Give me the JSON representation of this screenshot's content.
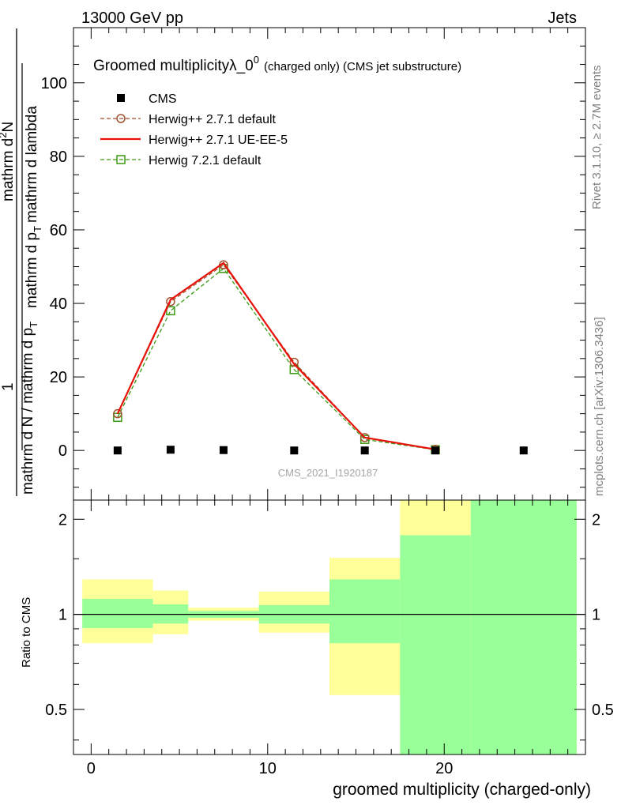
{
  "header": {
    "energy": "13000 GeV pp",
    "process": "Jets"
  },
  "side_labels": {
    "rivet": "Rivet 3.1.10, ≥ 2.7M events",
    "mcplots": "mcplots.cern.ch [arXiv:1306.3436]"
  },
  "chart_data": [
    {
      "type": "scatter",
      "title_main": "Groomed multiplicityλ_0",
      "title_sup": "0",
      "title_small": "(charged only) (CMS jet substructure)",
      "analysis_label": "CMS_2021_I1920187",
      "ylabel": {
        "numerator": "1",
        "denominator": "mathrm d N / mathrm d p",
        "frac_num": "mathrm d",
        "frac_num_sup": "2",
        "frac_num_tail": "N",
        "frac_den_a": "mathrm d p",
        "frac_den_b": "mathrm d lambda",
        "sub": "T"
      },
      "xlim": [
        -1,
        28
      ],
      "ylim": [
        -13.5,
        115
      ],
      "y_ticks": [
        "0",
        "20",
        "40",
        "60",
        "80",
        "100"
      ],
      "legend_position": "top-left",
      "series": [
        {
          "name": "CMS",
          "color": "#000000",
          "marker": "filled-square",
          "x": [
            1.5,
            4.5,
            7.5,
            11.5,
            15.5,
            19.5,
            24.5
          ],
          "y": [
            0,
            0.2,
            0.1,
            0,
            0,
            0,
            0
          ]
        },
        {
          "name": "Herwig++ 2.7.1 default",
          "color": "#a0522d",
          "marker": "open-circle",
          "line": "dashed",
          "x": [
            1.5,
            4.5,
            7.5,
            11.5,
            15.5,
            19.5
          ],
          "y": [
            10.0,
            40.5,
            50.5,
            24.0,
            3.5,
            0.3
          ]
        },
        {
          "name": "Herwig++ 2.7.1 UE-EE-5",
          "color": "#e8120b",
          "marker": "none",
          "line": "solid",
          "x": [
            1.5,
            4.5,
            7.5,
            11.5,
            15.5,
            19.5
          ],
          "y": [
            10.0,
            41.0,
            51.0,
            23.5,
            3.5,
            0.3
          ]
        },
        {
          "name": "Herwig 7.2.1 default",
          "color": "#3a9a14",
          "marker": "open-square",
          "line": "dashed",
          "x": [
            1.5,
            4.5,
            7.5,
            11.5,
            15.5,
            19.5
          ],
          "y": [
            9.0,
            38.0,
            49.5,
            22.0,
            3.0,
            0.2
          ]
        }
      ]
    },
    {
      "type": "area",
      "ylabel": "Ratio to CMS",
      "xlabel": "groomed multiplicity (charged-only)",
      "xlim": [
        -1,
        28
      ],
      "ylim": [
        0.36,
        2.3
      ],
      "y_scale": "log",
      "y_ticks": [
        "0.5",
        "1",
        "2"
      ],
      "x_ticks": [
        "0",
        "10",
        "20"
      ],
      "reference_line": 1,
      "bands": [
        {
          "x": [
            -0.5,
            3.5
          ],
          "total": [
            0.81,
            1.29
          ],
          "inner": [
            0.905,
            1.12
          ]
        },
        {
          "x": [
            3.5,
            5.5
          ],
          "total": [
            0.865,
            1.19
          ],
          "inner": [
            0.935,
            1.075
          ]
        },
        {
          "x": [
            5.5,
            9.5
          ],
          "total": [
            0.955,
            1.05
          ],
          "inner": [
            0.975,
            1.025
          ]
        },
        {
          "x": [
            9.5,
            13.5
          ],
          "total": [
            0.875,
            1.18
          ],
          "inner": [
            0.935,
            1.07
          ]
        },
        {
          "x": [
            13.5,
            17.5
          ],
          "total": [
            0.555,
            1.51
          ],
          "inner": [
            0.81,
            1.29
          ]
        },
        {
          "x": [
            17.5,
            21.5
          ],
          "total": [
            0.36,
            2.3
          ],
          "inner": [
            0.36,
            1.78
          ]
        },
        {
          "x": [
            21.5,
            27.5
          ],
          "total": [
            0.36,
            2.3
          ],
          "inner": [
            0.36,
            2.3
          ]
        }
      ],
      "colors": {
        "total": "#ffff99",
        "inner": "#99ff99"
      }
    }
  ]
}
